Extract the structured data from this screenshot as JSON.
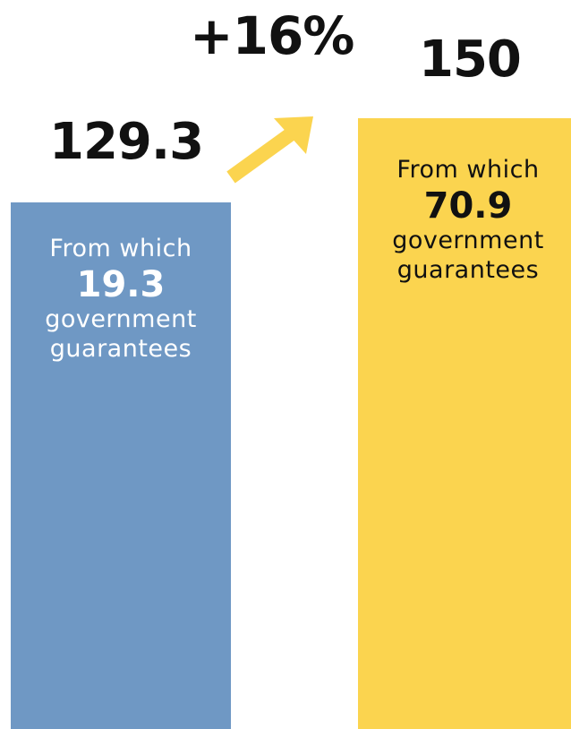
{
  "chart_data": {
    "type": "bar",
    "categories": [
      "",
      ""
    ],
    "values": [
      129.3,
      150
    ],
    "value_labels": [
      "129.3",
      "150"
    ],
    "ylim": [
      0,
      150
    ],
    "grid": false,
    "colors": [
      "#6f98c4",
      "#fbd44f"
    ],
    "annotations": {
      "change": "+16%",
      "breakdown": [
        {
          "prefix": "From which",
          "value": "19.3",
          "suffix_1": "government",
          "suffix_2": "guarantees",
          "text_color": "#ffffff"
        },
        {
          "prefix": "From which",
          "value": "70.9",
          "suffix_1": "government",
          "suffix_2": "guarantees",
          "text_color": "#111111"
        }
      ]
    }
  }
}
